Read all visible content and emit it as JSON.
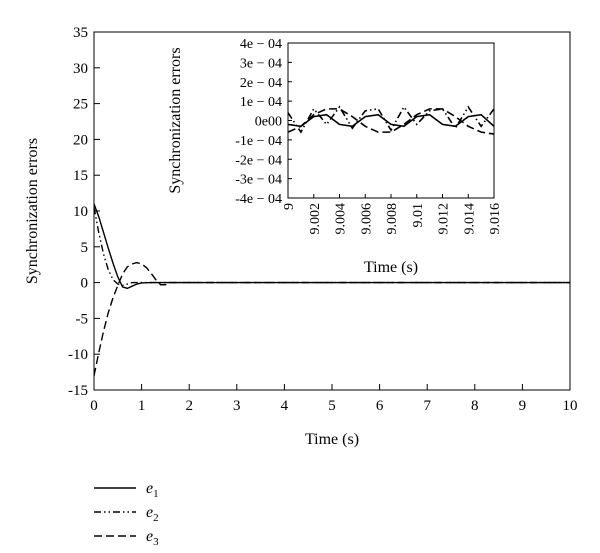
{
  "chart_data": [
    {
      "type": "line",
      "xlabel": "Time (s)",
      "ylabel": "Synchronization errors",
      "xlim": [
        0,
        10
      ],
      "ylim": [
        -15,
        35
      ],
      "x_ticks": [
        0,
        1,
        2,
        3,
        4,
        5,
        6,
        7,
        8,
        9,
        10
      ],
      "y_ticks": [
        -15,
        -10,
        -5,
        0,
        5,
        10,
        15,
        20,
        25,
        30,
        35
      ],
      "x_tick_labels": [
        "0",
        "1",
        "2",
        "3",
        "4",
        "5",
        "6",
        "7",
        "8",
        "9",
        "10"
      ],
      "y_tick_labels": [
        "-15",
        "-10",
        "-5",
        "0",
        "5",
        "10",
        "15",
        "20",
        "25",
        "30",
        "35"
      ],
      "grid": false,
      "legend_position": "below-left",
      "series": [
        {
          "name": "e1",
          "style": "solid",
          "x": [
            0,
            0.1,
            0.2,
            0.3,
            0.4,
            0.5,
            0.6,
            0.7,
            0.8,
            0.9,
            1.0,
            1.2,
            1.5,
            2,
            10
          ],
          "y": [
            11,
            9.2,
            7.0,
            4.8,
            2.7,
            0.8,
            -0.6,
            -0.8,
            -0.5,
            -0.2,
            -0.05,
            0,
            0,
            0,
            0
          ]
        },
        {
          "name": "e2",
          "style": "dash-dot-dot",
          "x": [
            0,
            0.1,
            0.2,
            0.3,
            0.4,
            0.5,
            0.6,
            0.7,
            0.8,
            0.9,
            1.0,
            1.2,
            1.5,
            2,
            10
          ],
          "y": [
            10.5,
            7.0,
            4.0,
            1.8,
            0.4,
            -0.2,
            -0.4,
            -0.2,
            0,
            0,
            0,
            0,
            0,
            0,
            0
          ]
        },
        {
          "name": "e3",
          "style": "dashed",
          "x": [
            0,
            0.1,
            0.2,
            0.3,
            0.4,
            0.5,
            0.6,
            0.7,
            0.8,
            0.9,
            1.0,
            1.1,
            1.2,
            1.3,
            1.4,
            1.5,
            1.6,
            2,
            10
          ],
          "y": [
            -13,
            -9.8,
            -6.8,
            -4.2,
            -2.1,
            -0.4,
            1.2,
            2.2,
            2.6,
            2.8,
            2.6,
            2.1,
            1.3,
            0.4,
            -0.3,
            -0.3,
            0,
            0,
            0
          ]
        }
      ]
    },
    {
      "type": "line",
      "xlabel": "Time (s)",
      "ylabel": "Synchronization errors",
      "xlim": [
        9,
        9.016
      ],
      "ylim": [
        -0.0004,
        0.0004
      ],
      "x_ticks": [
        9,
        9.002,
        9.004,
        9.006,
        9.008,
        9.01,
        9.012,
        9.014,
        9.016
      ],
      "y_ticks": [
        -0.0004,
        -0.0003,
        -0.0002,
        -0.0001,
        0,
        0.0001,
        0.0002,
        0.0003,
        0.0004
      ],
      "x_tick_labels": [
        "9",
        "9.002",
        "9.004",
        "9.006",
        "9.008",
        "9.01",
        "9.012",
        "9.014",
        "9.016"
      ],
      "y_tick_labels": [
        "-4e − 04",
        "-3e − 04",
        "-2e − 04",
        "-1e − 04",
        "0e00",
        "1e − 04",
        "2e − 04",
        "3e − 04",
        "4e − 04"
      ],
      "grid": false,
      "series": [
        {
          "name": "e1",
          "style": "solid",
          "x": [
            9,
            9.001,
            9.002,
            9.003,
            9.004,
            9.005,
            9.006,
            9.007,
            9.008,
            9.009,
            9.01,
            9.011,
            9.012,
            9.013,
            9.014,
            9.015,
            9.016
          ],
          "y": [
            -2e-05,
            -3e-05,
            2e-05,
            3e-05,
            -2e-05,
            -3e-05,
            2e-05,
            3e-05,
            -2e-05,
            -3e-05,
            2e-05,
            3e-05,
            -2e-05,
            -3e-05,
            2e-05,
            3e-05,
            -3e-05
          ]
        },
        {
          "name": "e2",
          "style": "dash-dot-dot",
          "x": [
            9,
            9.001,
            9.002,
            9.003,
            9.004,
            9.005,
            9.006,
            9.007,
            9.008,
            9.009,
            9.01,
            9.011,
            9.012,
            9.013,
            9.014,
            9.015,
            9.016
          ],
          "y": [
            4e-05,
            -6e-05,
            6e-05,
            -2e-05,
            7e-05,
            -4e-05,
            5e-05,
            6e-05,
            -5e-05,
            7e-05,
            -2e-05,
            5e-05,
            6e-05,
            -4e-05,
            7e-05,
            -3e-05,
            6e-05
          ]
        },
        {
          "name": "e3",
          "style": "dashed",
          "x": [
            9,
            9.001,
            9.002,
            9.003,
            9.004,
            9.005,
            9.006,
            9.007,
            9.008,
            9.009,
            9.01,
            9.011,
            9.012,
            9.013,
            9.014,
            9.015,
            9.016
          ],
          "y": [
            -6e-05,
            -3e-05,
            3e-05,
            6e-05,
            6e-05,
            2e-05,
            -3e-05,
            -6e-05,
            -6e-05,
            -2e-05,
            3e-05,
            6e-05,
            6e-05,
            2e-05,
            -3e-05,
            -6e-05,
            -7e-05
          ]
        }
      ]
    }
  ]
}
